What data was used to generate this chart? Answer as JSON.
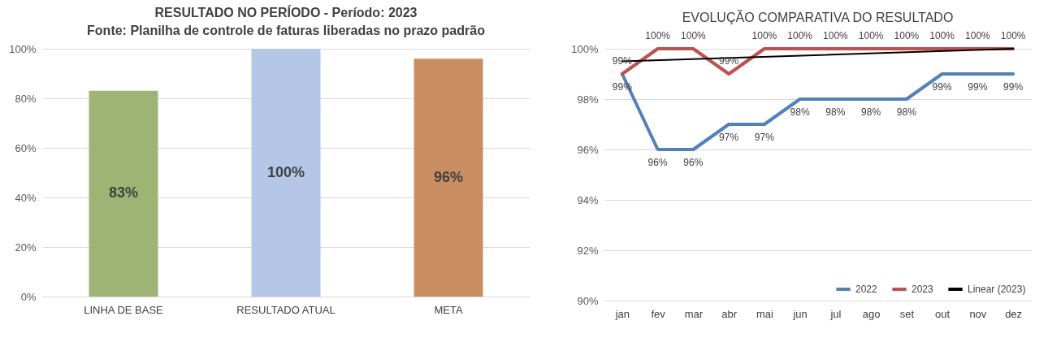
{
  "chart_data": [
    {
      "type": "bar",
      "title": "RESULTADO NO PERÍODO  - Período: 2023",
      "annotations": [
        "Fonte: Planilha de controle de faturas liberadas no prazo padrão"
      ],
      "categories": [
        "LINHA DE  BASE",
        "RESULTADO ATUAL",
        "META"
      ],
      "values": [
        83,
        100,
        96
      ],
      "colors": [
        "#9db474",
        "#b4c7e7",
        "#c98f62"
      ],
      "value_labels": [
        "83%",
        "100%",
        "96%"
      ],
      "ylim": [
        0,
        100
      ],
      "yticks": [
        {
          "value": 0,
          "label": "0%"
        },
        {
          "value": 20,
          "label": "20%"
        },
        {
          "value": 40,
          "label": "40%"
        },
        {
          "value": 60,
          "label": "60%"
        },
        {
          "value": 80,
          "label": "80%"
        },
        {
          "value": 100,
          "label": "100%"
        }
      ],
      "grid": "y"
    },
    {
      "type": "line",
      "title": "EVOLUÇÃO COMPARATIVA DO RESULTADO",
      "categories": [
        "jan",
        "fev",
        "mar",
        "abr",
        "mai",
        "jun",
        "jul",
        "ago",
        "set",
        "out",
        "nov",
        "dez"
      ],
      "series": [
        {
          "name": "2022",
          "color": "#4f81bd",
          "values": [
            99,
            96,
            96,
            97,
            97,
            98,
            98,
            98,
            98,
            99,
            99,
            99
          ],
          "value_labels": [
            "99%",
            "96%",
            "96%",
            "97%",
            "97%",
            "98%",
            "98%",
            "98%",
            "98%",
            "99%",
            "99%",
            "99%"
          ]
        },
        {
          "name": "2023",
          "color": "#c0504d",
          "values": [
            99,
            100,
            100,
            99,
            100,
            100,
            100,
            100,
            100,
            100,
            100,
            100
          ],
          "value_labels": [
            "99%",
            "100%",
            "100%",
            "99%",
            "100%",
            "100%",
            "100%",
            "100%",
            "100%",
            "100%",
            "100%",
            "100%"
          ]
        },
        {
          "name": "Linear (2023)",
          "type": "line",
          "color": "#000000",
          "x": [
            "jan",
            "dez"
          ],
          "values": [
            99.5,
            100
          ]
        }
      ],
      "ylim": [
        90,
        100
      ],
      "yticks": [
        {
          "value": 90,
          "label": "90%"
        },
        {
          "value": 92,
          "label": "92%"
        },
        {
          "value": 94,
          "label": "94%"
        },
        {
          "value": 96,
          "label": "96%"
        },
        {
          "value": 98,
          "label": "98%"
        },
        {
          "value": 100,
          "label": "100%"
        }
      ],
      "grid": "y",
      "legend": "bottom right",
      "marker": "none",
      "line_style": "solid"
    }
  ]
}
